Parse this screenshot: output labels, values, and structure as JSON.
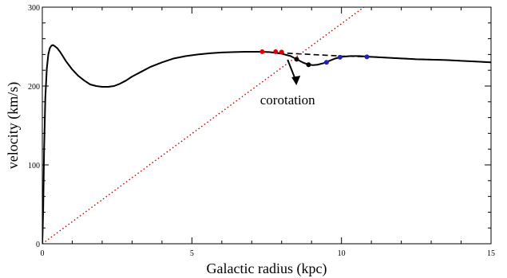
{
  "chart_data": {
    "type": "line",
    "xlabel": "Galactic radius (kpc)",
    "ylabel": "velocity (km/s)",
    "xlim": [
      0,
      15
    ],
    "ylim": [
      0,
      300
    ],
    "x_ticks": [
      0,
      5,
      10,
      15
    ],
    "y_ticks": [
      0,
      100,
      200,
      300
    ],
    "x_tick_labels": [
      "0",
      "5",
      "10",
      "15"
    ],
    "y_tick_labels": [
      "0",
      "100",
      "200",
      "300"
    ],
    "grid": false,
    "legend": "none",
    "series": [
      {
        "style": "solid",
        "color": "#000000",
        "x": [
          0.0,
          0.03,
          0.06,
          0.1,
          0.15,
          0.2,
          0.25,
          0.3,
          0.35,
          0.4,
          0.5,
          0.6,
          0.7,
          0.8,
          0.9,
          1.0,
          1.2,
          1.4,
          1.6,
          1.8,
          2.0,
          2.2,
          2.4,
          2.6,
          2.8,
          3.0,
          3.3,
          3.6,
          4.0,
          4.4,
          4.8,
          5.2,
          5.6,
          6.0,
          6.4,
          6.8,
          7.2,
          7.6,
          8.0,
          8.3,
          8.5,
          8.7,
          8.9,
          9.05,
          9.2,
          9.4,
          9.6,
          9.8,
          10.0,
          10.3,
          10.6,
          11.0,
          11.5,
          12.0,
          12.5,
          13.0,
          13.5,
          14.0,
          14.5,
          15.0
        ],
        "y": [
          0,
          45,
          120,
          185,
          222,
          240,
          248,
          251,
          252,
          251,
          248,
          243,
          237,
          231,
          226,
          221,
          213,
          207,
          202,
          200,
          199,
          199,
          200,
          203,
          207,
          212,
          218,
          224,
          230,
          235,
          238,
          240,
          241.5,
          242.5,
          243,
          243.5,
          243.5,
          243,
          241,
          238,
          234,
          230,
          227,
          226.5,
          227,
          229,
          232,
          235,
          237,
          238,
          238,
          237,
          236,
          235,
          234,
          233.5,
          233,
          232,
          231,
          230
        ]
      },
      {
        "style": "dashed",
        "color": "#000000",
        "x": [
          7.6,
          8.0,
          8.5,
          9.0,
          9.5,
          10.0,
          10.5,
          11.0,
          11.5,
          12.0,
          12.5,
          13.0,
          13.5,
          14.0,
          14.5,
          15.0
        ],
        "y": [
          243,
          242,
          241,
          240,
          239,
          238,
          237.5,
          237,
          236,
          235,
          234,
          233.5,
          233,
          232,
          231,
          230
        ]
      },
      {
        "style": "dotted",
        "color": "#c00000",
        "x": [
          0,
          10.75
        ],
        "y": [
          0,
          300
        ]
      }
    ],
    "markers": [
      {
        "color": "#e00000",
        "points": [
          [
            7.35,
            243.5
          ],
          [
            7.8,
            243.5
          ],
          [
            8.0,
            243
          ]
        ]
      },
      {
        "color": "#000000",
        "points": [
          [
            8.5,
            234
          ],
          [
            8.9,
            227
          ]
        ]
      },
      {
        "color": "#2020c0",
        "points": [
          [
            9.5,
            230
          ],
          [
            9.95,
            236.5
          ],
          [
            10.85,
            237
          ]
        ]
      }
    ],
    "annotations": [
      {
        "text": "corotation",
        "x": 8.2,
        "y": 175
      }
    ]
  }
}
